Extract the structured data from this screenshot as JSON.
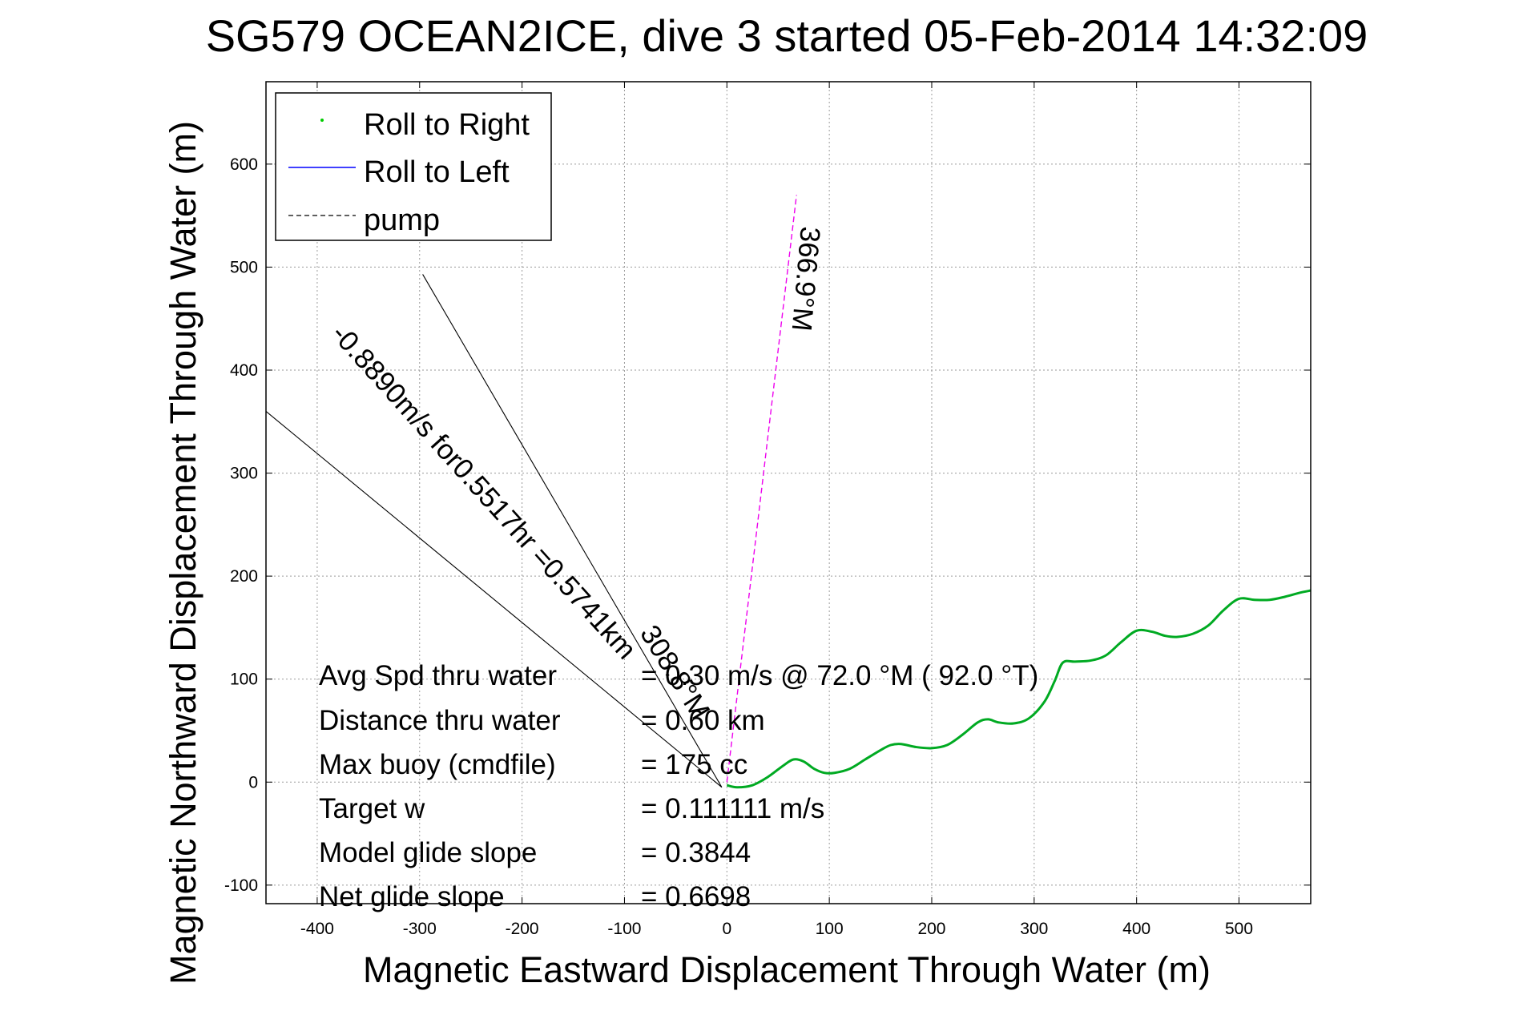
{
  "chart_data": {
    "type": "line",
    "title": "SG579 OCEAN2ICE, dive 3 started 05-Feb-2014 14:32:09",
    "xlabel": "Magnetic Eastward Displacement Through Water (m)",
    "ylabel": "Magnetic Northward Displacement Through Water (m)",
    "xlim": [
      -450,
      570
    ],
    "ylim": [
      -118,
      680
    ],
    "xticks": [
      -400,
      -300,
      -200,
      -100,
      0,
      100,
      200,
      300,
      400,
      500
    ],
    "yticks": [
      -100,
      0,
      100,
      200,
      300,
      400,
      500,
      600
    ],
    "grid": true,
    "legend_position": "top-left",
    "legend": [
      {
        "label": "Roll to Right",
        "color": "#00cc00",
        "style": "point"
      },
      {
        "label": "Roll to Left",
        "color": "#0000ff",
        "style": "solid"
      },
      {
        "label": "pump",
        "color": "#000000",
        "style": "dashed"
      }
    ],
    "track": {
      "color": "#00aa22",
      "x": [
        0,
        10,
        25,
        40,
        55,
        65,
        75,
        85,
        95,
        105,
        120,
        135,
        150,
        160,
        170,
        185,
        200,
        215,
        230,
        245,
        255,
        265,
        280,
        295,
        310,
        320,
        328,
        340,
        355,
        370,
        385,
        400,
        415,
        428,
        440,
        455,
        470,
        485,
        500,
        515,
        530,
        545,
        560,
        570
      ],
      "y": [
        -3,
        -5,
        -3,
        5,
        16,
        22,
        20,
        13,
        9,
        9,
        13,
        22,
        31,
        36,
        37,
        34,
        33,
        36,
        46,
        58,
        61,
        58,
        57,
        62,
        78,
        98,
        116,
        117,
        118,
        123,
        136,
        147,
        146,
        142,
        141,
        144,
        152,
        167,
        178,
        177,
        177,
        180,
        184,
        186
      ]
    },
    "heading_line": {
      "label": "366.9°M",
      "color": "#ee00ee",
      "x": [
        0,
        68
      ],
      "y": [
        0,
        570
      ]
    },
    "bearing_lines": [
      {
        "x": [
          -5,
          -297
        ],
        "y": [
          -5,
          493
        ],
        "color": "#000000"
      },
      {
        "x": [
          -5,
          -450
        ],
        "y": [
          -5,
          360
        ],
        "color": "#000000"
      }
    ],
    "line_labels": [
      {
        "text": "-0.8890m/s for0.5517hr =0.5741km"
      },
      {
        "text": "308.8°M"
      }
    ],
    "annotations": [
      {
        "label": "Avg Spd thru water",
        "value": "= 0.30 m/s @  72.0 °M ( 92.0 °T)"
      },
      {
        "label": "Distance thru water",
        "value": "= 0.60 km"
      },
      {
        "label": "Max buoy (cmdfile)",
        "value": "= 175 cc"
      },
      {
        "label": "Target w",
        "value": "= 0.111111 m/s"
      },
      {
        "label": "Model glide slope",
        "value": "= 0.3844"
      },
      {
        "label": "Net glide slope",
        "value": "= 0.6698"
      }
    ]
  }
}
